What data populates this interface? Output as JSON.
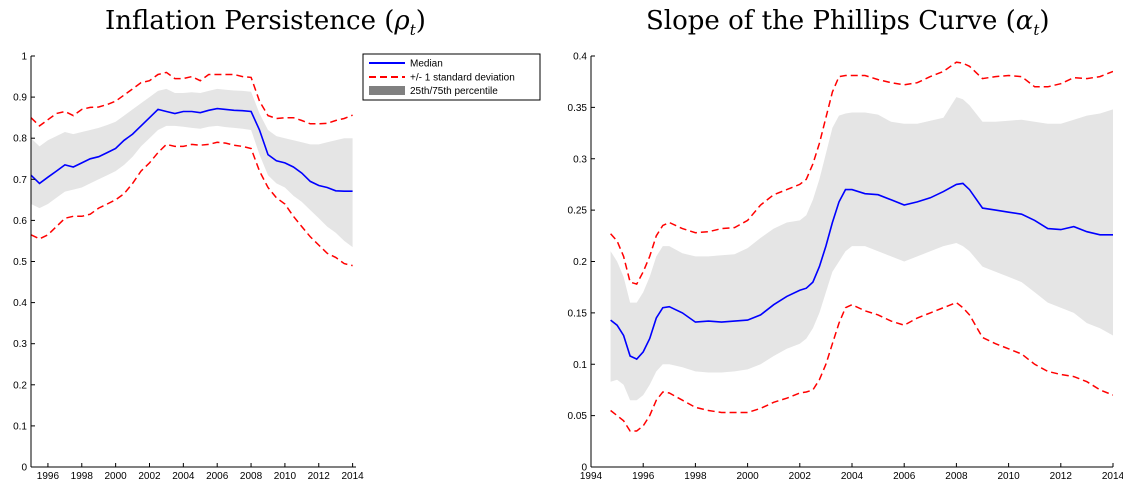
{
  "chart_data": [
    {
      "type": "line",
      "title": "Inflation Persistence",
      "title_symbol": "ρ",
      "title_subscript": "t",
      "xlim": [
        1995,
        2014.2
      ],
      "ylim": [
        0,
        1
      ],
      "x_ticks": [
        "1996",
        "1998",
        "2000",
        "2002",
        "2004",
        "2006",
        "2008",
        "2010",
        "2012",
        "2014"
      ],
      "y_ticks": [
        "0",
        "0.1",
        "0.2",
        "0.3",
        "0.4",
        "0.5",
        "0.6",
        "0.7",
        "0.8",
        "0.9",
        "1"
      ],
      "legend": {
        "placement": "outside-right",
        "entries": [
          "Median",
          "+/- 1 standard deviation",
          "25th/75th percentile"
        ]
      },
      "x": [
        1995.0,
        1995.5,
        1996.0,
        1996.5,
        1997.0,
        1997.5,
        1998.0,
        1998.5,
        1999.0,
        1999.5,
        2000.0,
        2000.5,
        2001.0,
        2001.5,
        2002.0,
        2002.5,
        2003.0,
        2003.5,
        2004.0,
        2004.5,
        2005.0,
        2005.5,
        2006.0,
        2006.5,
        2007.0,
        2007.5,
        2008.0,
        2008.5,
        2009.0,
        2009.5,
        2010.0,
        2010.5,
        2011.0,
        2011.5,
        2012.0,
        2012.5,
        2013.0,
        2013.5,
        2014.0
      ],
      "series": [
        {
          "name": "Median",
          "color": "#0000ff",
          "style": "solid",
          "values": [
            0.71,
            0.69,
            0.705,
            0.72,
            0.735,
            0.73,
            0.74,
            0.75,
            0.755,
            0.765,
            0.775,
            0.795,
            0.81,
            0.83,
            0.85,
            0.87,
            0.865,
            0.86,
            0.865,
            0.865,
            0.862,
            0.868,
            0.872,
            0.87,
            0.868,
            0.867,
            0.865,
            0.82,
            0.76,
            0.745,
            0.74,
            0.73,
            0.715,
            0.695,
            0.685,
            0.68,
            0.672,
            0.671,
            0.671
          ]
        },
        {
          "name": "+/- 1 standard deviation (upper)",
          "color": "#ff0000",
          "style": "dashed",
          "values": [
            0.85,
            0.83,
            0.845,
            0.86,
            0.865,
            0.855,
            0.87,
            0.875,
            0.876,
            0.882,
            0.89,
            0.905,
            0.92,
            0.935,
            0.94,
            0.955,
            0.96,
            0.945,
            0.945,
            0.95,
            0.94,
            0.955,
            0.955,
            0.955,
            0.955,
            0.95,
            0.948,
            0.89,
            0.855,
            0.848,
            0.85,
            0.85,
            0.843,
            0.835,
            0.835,
            0.836,
            0.843,
            0.848,
            0.856
          ]
        },
        {
          "name": "+/- 1 standard deviation (lower)",
          "color": "#ff0000",
          "style": "dashed",
          "values": [
            0.565,
            0.555,
            0.565,
            0.585,
            0.605,
            0.61,
            0.61,
            0.615,
            0.63,
            0.64,
            0.65,
            0.665,
            0.69,
            0.72,
            0.74,
            0.765,
            0.785,
            0.78,
            0.78,
            0.785,
            0.783,
            0.785,
            0.79,
            0.788,
            0.783,
            0.78,
            0.775,
            0.72,
            0.68,
            0.655,
            0.64,
            0.61,
            0.585,
            0.56,
            0.54,
            0.52,
            0.51,
            0.495,
            0.49
          ]
        },
        {
          "name": "25th percentile",
          "color": "#e5e5e5",
          "style": "band",
          "values": [
            0.64,
            0.63,
            0.64,
            0.655,
            0.67,
            0.675,
            0.68,
            0.69,
            0.7,
            0.71,
            0.72,
            0.735,
            0.755,
            0.78,
            0.8,
            0.82,
            0.83,
            0.83,
            0.828,
            0.825,
            0.823,
            0.828,
            0.83,
            0.827,
            0.825,
            0.823,
            0.82,
            0.76,
            0.71,
            0.69,
            0.68,
            0.66,
            0.645,
            0.625,
            0.605,
            0.585,
            0.57,
            0.55,
            0.535
          ]
        },
        {
          "name": "75th percentile",
          "color": "#e5e5e5",
          "style": "band",
          "values": [
            0.8,
            0.78,
            0.795,
            0.805,
            0.815,
            0.81,
            0.815,
            0.82,
            0.825,
            0.832,
            0.84,
            0.855,
            0.87,
            0.885,
            0.9,
            0.915,
            0.92,
            0.91,
            0.91,
            0.912,
            0.91,
            0.915,
            0.92,
            0.918,
            0.916,
            0.915,
            0.913,
            0.86,
            0.82,
            0.805,
            0.8,
            0.795,
            0.79,
            0.785,
            0.785,
            0.79,
            0.795,
            0.8,
            0.8
          ]
        }
      ]
    },
    {
      "type": "line",
      "title": "Slope of the Phillips Curve",
      "title_symbol": "α",
      "title_subscript": "t",
      "xlim": [
        1994,
        2014
      ],
      "ylim": [
        0,
        0.4
      ],
      "x_ticks": [
        "1994",
        "1996",
        "1998",
        "2000",
        "2002",
        "2004",
        "2006",
        "2008",
        "2010",
        "2012",
        "2014"
      ],
      "y_ticks": [
        "0",
        "0.05",
        "0.1",
        "0.15",
        "0.2",
        "0.25",
        "0.3",
        "0.35",
        "0.4"
      ],
      "x": [
        1994.75,
        1995.0,
        1995.25,
        1995.5,
        1995.75,
        1996.0,
        1996.25,
        1996.5,
        1996.75,
        1997.0,
        1997.5,
        1998.0,
        1998.5,
        1999.0,
        1999.5,
        2000.0,
        2000.5,
        2001.0,
        2001.5,
        2002.0,
        2002.25,
        2002.5,
        2002.75,
        2003.0,
        2003.25,
        2003.5,
        2003.75,
        2004.0,
        2004.5,
        2005.0,
        2005.5,
        2006.0,
        2006.5,
        2007.0,
        2007.5,
        2008.0,
        2008.25,
        2008.5,
        2009.0,
        2009.5,
        2010.0,
        2010.5,
        2011.0,
        2011.5,
        2012.0,
        2012.5,
        2013.0,
        2013.5,
        2014.0
      ],
      "series": [
        {
          "name": "Median",
          "color": "#0000ff",
          "style": "solid",
          "values": [
            0.143,
            0.138,
            0.128,
            0.108,
            0.105,
            0.112,
            0.125,
            0.145,
            0.155,
            0.156,
            0.15,
            0.141,
            0.142,
            0.141,
            0.142,
            0.143,
            0.148,
            0.158,
            0.166,
            0.172,
            0.174,
            0.18,
            0.195,
            0.215,
            0.238,
            0.258,
            0.27,
            0.27,
            0.266,
            0.265,
            0.26,
            0.255,
            0.258,
            0.262,
            0.268,
            0.275,
            0.276,
            0.27,
            0.252,
            0.25,
            0.248,
            0.246,
            0.24,
            0.232,
            0.231,
            0.234,
            0.229,
            0.226,
            0.226
          ]
        },
        {
          "name": "+/- 1 standard deviation (upper)",
          "color": "#ff0000",
          "style": "dashed",
          "values": [
            0.227,
            0.22,
            0.205,
            0.18,
            0.178,
            0.19,
            0.205,
            0.225,
            0.235,
            0.238,
            0.232,
            0.228,
            0.229,
            0.232,
            0.233,
            0.24,
            0.255,
            0.265,
            0.27,
            0.275,
            0.28,
            0.295,
            0.315,
            0.34,
            0.365,
            0.38,
            0.381,
            0.381,
            0.381,
            0.377,
            0.374,
            0.372,
            0.374,
            0.38,
            0.385,
            0.394,
            0.393,
            0.39,
            0.378,
            0.38,
            0.381,
            0.38,
            0.37,
            0.37,
            0.373,
            0.379,
            0.378,
            0.38,
            0.385
          ]
        },
        {
          "name": "+/- 1 standard deviation (lower)",
          "color": "#ff0000",
          "style": "dashed",
          "values": [
            0.055,
            0.05,
            0.045,
            0.035,
            0.035,
            0.04,
            0.05,
            0.065,
            0.073,
            0.072,
            0.065,
            0.058,
            0.055,
            0.053,
            0.053,
            0.053,
            0.057,
            0.063,
            0.067,
            0.072,
            0.073,
            0.075,
            0.085,
            0.1,
            0.12,
            0.14,
            0.155,
            0.158,
            0.152,
            0.148,
            0.142,
            0.138,
            0.145,
            0.15,
            0.155,
            0.16,
            0.155,
            0.148,
            0.126,
            0.12,
            0.115,
            0.11,
            0.1,
            0.093,
            0.09,
            0.088,
            0.083,
            0.075,
            0.07
          ]
        },
        {
          "name": "25th percentile",
          "color": "#e5e5e5",
          "style": "band",
          "values": [
            0.083,
            0.085,
            0.08,
            0.065,
            0.065,
            0.07,
            0.08,
            0.093,
            0.1,
            0.1,
            0.097,
            0.093,
            0.092,
            0.092,
            0.093,
            0.095,
            0.1,
            0.108,
            0.115,
            0.12,
            0.125,
            0.135,
            0.15,
            0.17,
            0.19,
            0.2,
            0.21,
            0.215,
            0.215,
            0.21,
            0.205,
            0.2,
            0.205,
            0.21,
            0.215,
            0.218,
            0.215,
            0.21,
            0.195,
            0.19,
            0.185,
            0.18,
            0.17,
            0.16,
            0.155,
            0.15,
            0.14,
            0.135,
            0.128
          ]
        },
        {
          "name": "75th percentile",
          "color": "#e5e5e5",
          "style": "band",
          "values": [
            0.21,
            0.2,
            0.185,
            0.16,
            0.16,
            0.17,
            0.185,
            0.205,
            0.215,
            0.215,
            0.208,
            0.205,
            0.205,
            0.206,
            0.207,
            0.213,
            0.223,
            0.232,
            0.238,
            0.24,
            0.245,
            0.26,
            0.28,
            0.305,
            0.33,
            0.342,
            0.344,
            0.345,
            0.345,
            0.343,
            0.336,
            0.334,
            0.334,
            0.337,
            0.34,
            0.36,
            0.358,
            0.352,
            0.336,
            0.336,
            0.337,
            0.338,
            0.336,
            0.334,
            0.334,
            0.338,
            0.342,
            0.344,
            0.348
          ]
        }
      ]
    }
  ]
}
